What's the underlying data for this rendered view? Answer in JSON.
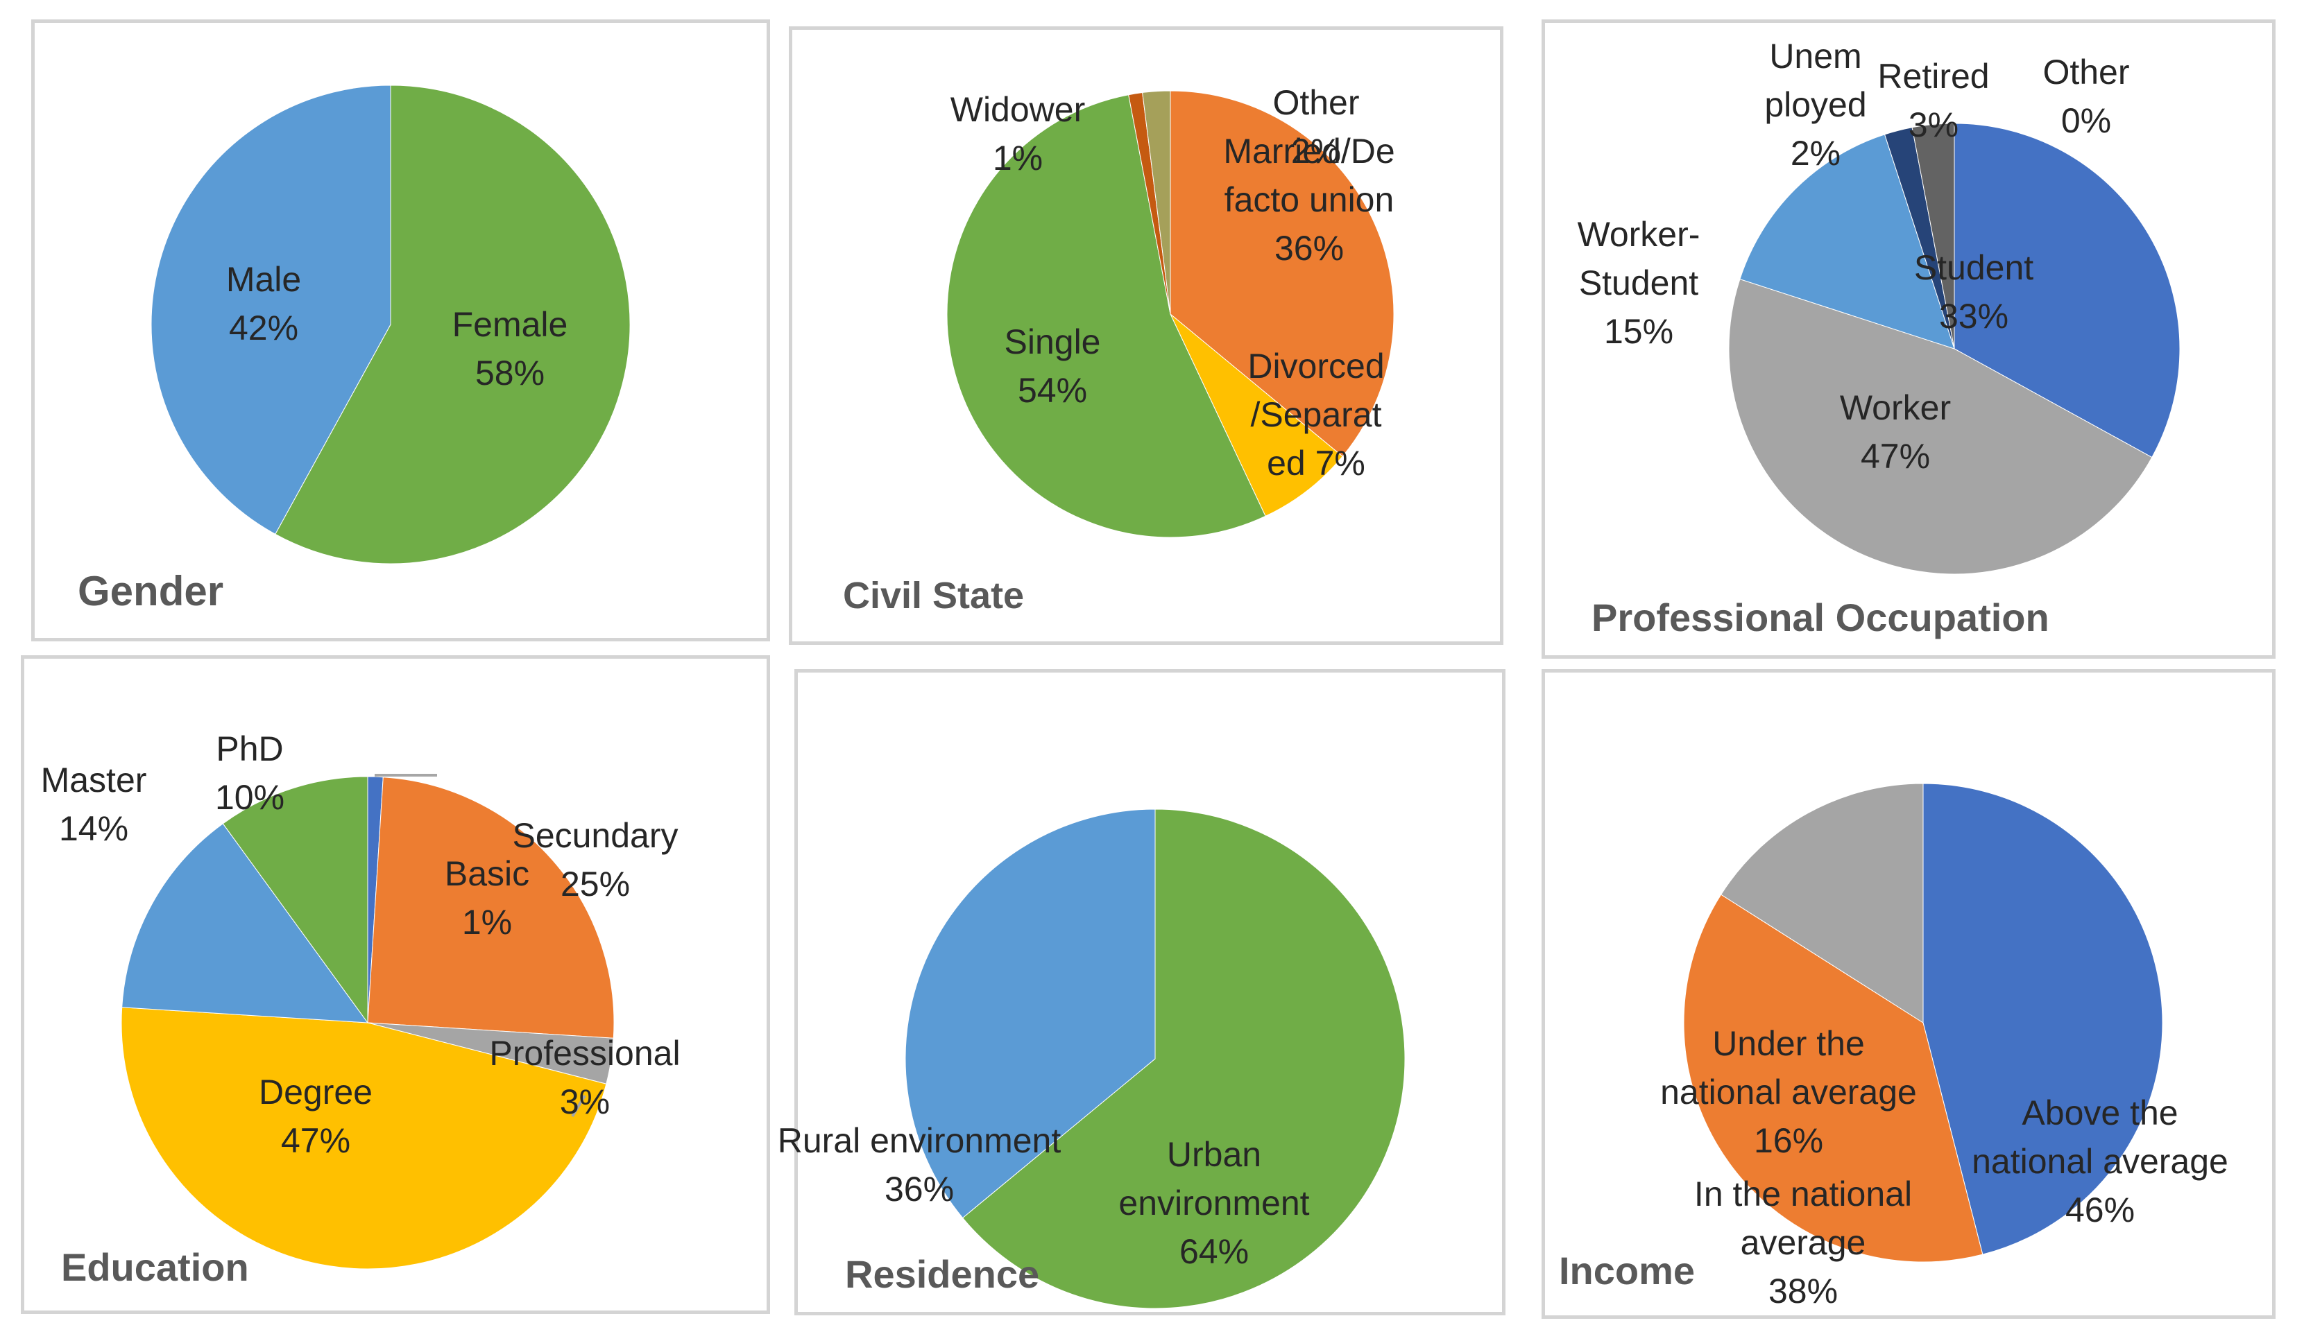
{
  "chart_data": [
    {
      "type": "pie",
      "title": "Gender",
      "colors": {
        "Female": "#70ad47",
        "Male": "#5b9bd5"
      },
      "slices": [
        {
          "name": "Female",
          "value": 58,
          "color": "#70ad47",
          "label_lines": [
            "Female",
            "58%"
          ]
        },
        {
          "name": "Male",
          "value": 42,
          "color": "#5b9bd5",
          "label_lines": [
            "Male",
            "42%"
          ]
        }
      ]
    },
    {
      "type": "pie",
      "title": "Civil State",
      "slices": [
        {
          "name": "Married/De facto union",
          "value": 36,
          "color": "#ed7d31",
          "label_lines": [
            "Married/De",
            "facto union",
            "36%"
          ]
        },
        {
          "name": "Divorced/Separated",
          "value": 7,
          "color": "#ffc000",
          "label_lines": [
            "Divorced",
            "/Separat",
            "ed 7%"
          ]
        },
        {
          "name": "Single",
          "value": 54,
          "color": "#70ad47",
          "label_lines": [
            "Single",
            "54%"
          ]
        },
        {
          "name": "Widower",
          "value": 1,
          "color": "#c55a11",
          "label_lines": [
            "Widower",
            "1%"
          ]
        },
        {
          "name": "Other",
          "value": 2,
          "color": "#a5a05a",
          "label_lines": [
            "Other",
            "2%"
          ]
        }
      ]
    },
    {
      "type": "pie",
      "title": "Professional Occupation",
      "slices": [
        {
          "name": "Student",
          "value": 33,
          "color": "#4472c4",
          "label_lines": [
            "Student",
            "33%"
          ]
        },
        {
          "name": "Worker",
          "value": 47,
          "color": "#a5a5a5",
          "label_lines": [
            "Worker",
            "47%"
          ]
        },
        {
          "name": "Worker-Student",
          "value": 15,
          "color": "#5b9bd5",
          "label_lines": [
            "Worker-",
            "Student",
            "15%"
          ]
        },
        {
          "name": "Unemployed",
          "value": 2,
          "color": "#264478",
          "label_lines": [
            "Unem",
            "ployed",
            "2%"
          ]
        },
        {
          "name": "Retired",
          "value": 3,
          "color": "#636363",
          "label_lines": [
            "Retired",
            "3%"
          ]
        },
        {
          "name": "Other",
          "value": 0,
          "color": "#2e75b6",
          "label_lines": [
            "Other",
            "0%"
          ]
        }
      ]
    },
    {
      "type": "pie",
      "title": "Education",
      "slices": [
        {
          "name": "Basic",
          "value": 1,
          "color": "#4472c4",
          "label_lines": [
            "Basic",
            "1%"
          ]
        },
        {
          "name": "Secundary",
          "value": 25,
          "color": "#ed7d31",
          "label_lines": [
            "Secundary",
            "25%"
          ]
        },
        {
          "name": "Professional",
          "value": 3,
          "color": "#a5a5a5",
          "label_lines": [
            "Professional",
            "3%"
          ]
        },
        {
          "name": "Degree",
          "value": 47,
          "color": "#ffc000",
          "label_lines": [
            "Degree",
            "47%"
          ]
        },
        {
          "name": "Master",
          "value": 14,
          "color": "#5b9bd5",
          "label_lines": [
            "Master",
            "14%"
          ]
        },
        {
          "name": "PhD",
          "value": 10,
          "color": "#70ad47",
          "label_lines": [
            "PhD",
            "10%"
          ]
        }
      ]
    },
    {
      "type": "pie",
      "title": "Residence",
      "slices": [
        {
          "name": "Urban environment",
          "value": 64,
          "color": "#70ad47",
          "label_lines": [
            "Urban",
            "environment",
            "64%"
          ]
        },
        {
          "name": "Rural environment",
          "value": 36,
          "color": "#5b9bd5",
          "label_lines": [
            "Rural environment",
            "36%"
          ]
        }
      ]
    },
    {
      "type": "pie",
      "title": "Income",
      "slices": [
        {
          "name": "Above the national average",
          "value": 46,
          "color": "#4472c4",
          "label_lines": [
            "Above the",
            "national average",
            "46%"
          ]
        },
        {
          "name": "In the national average",
          "value": 38,
          "color": "#ed7d31",
          "label_lines": [
            "In the national",
            "average",
            "38%"
          ]
        },
        {
          "name": "Under the national average",
          "value": 16,
          "color": "#a5a5a5",
          "label_lines": [
            "Under the",
            "national average",
            "16%"
          ]
        }
      ]
    }
  ]
}
